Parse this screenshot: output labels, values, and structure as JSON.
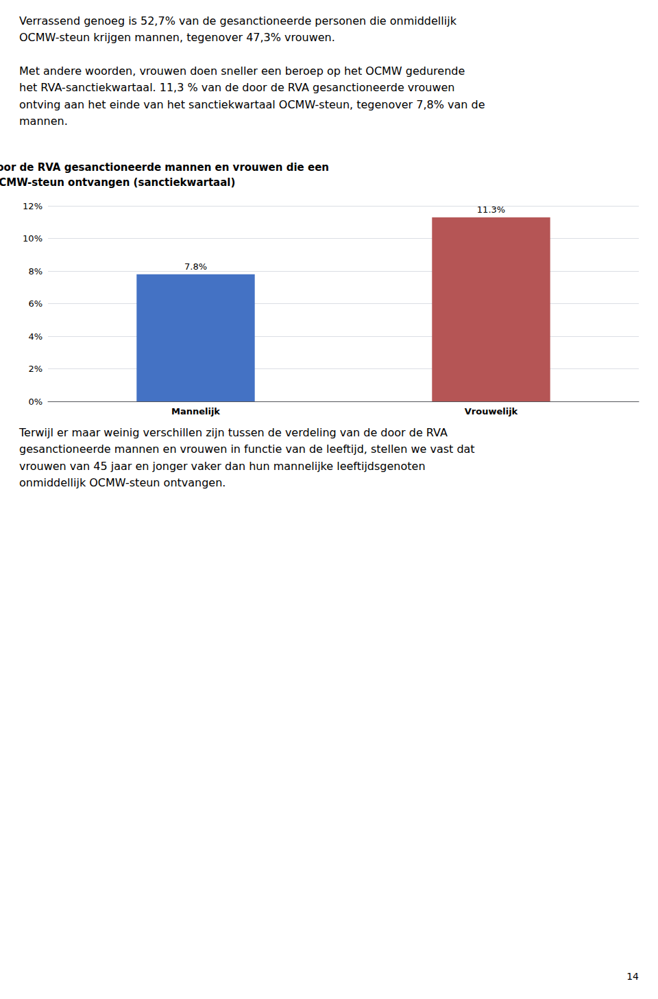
{
  "chart_data": {
    "type": "bar",
    "title": "Aandeel van de door de RVA gesanctioneerde mannen en vrouwen die een\nOCMW-steun ontvangen (sanctiekwartaal)",
    "categories": [
      "Mannelijk",
      "Vrouwelijk"
    ],
    "values": [
      7.8,
      11.3
    ],
    "value_labels": [
      "7.8%",
      "11.3%"
    ],
    "data_labels": true,
    "colors": [
      "#4472C4",
      "#B55555"
    ],
    "ylim": [
      0,
      12
    ],
    "yticks": [
      {
        "value": 0,
        "label": "0%"
      },
      {
        "value": 2,
        "label": "2%"
      },
      {
        "value": 4,
        "label": "4%"
      },
      {
        "value": 6,
        "label": "6%"
      },
      {
        "value": 8,
        "label": "8%"
      },
      {
        "value": 10,
        "label": "10%"
      },
      {
        "value": 12,
        "label": "12%"
      }
    ],
    "grid": true,
    "annotations": [
      [
        "Verrassend genoeg is 52,7% van de gesanctioneerde personen die onmiddellijk",
        "OCMW-steun krijgen mannen, tegenover 47,3% vrouwen."
      ],
      [
        "Met andere woorden, vrouwen doen sneller een beroep op het OCMW gedurende",
        "het RVA-sanctiekwartaal. 11,3 % van de door de RVA gesanctioneerde vrouwen",
        "ontving aan het einde van het sanctiekwartaal OCMW-steun, tegenover 7,8% van de",
        "mannen."
      ],
      [
        "Terwijl er maar weinig verschillen zijn tussen de verdeling van de door de RVA",
        "gesanctioneerde mannen en vrouwen in functie van de leeftijd, stellen we vast dat",
        "vrouwen van 45 jaar en jonger vaker dan hun mannelijke leeftijdsgenoten",
        "onmiddellijk OCMW-steun ontvangen."
      ],
      [
        "14"
      ]
    ]
  }
}
